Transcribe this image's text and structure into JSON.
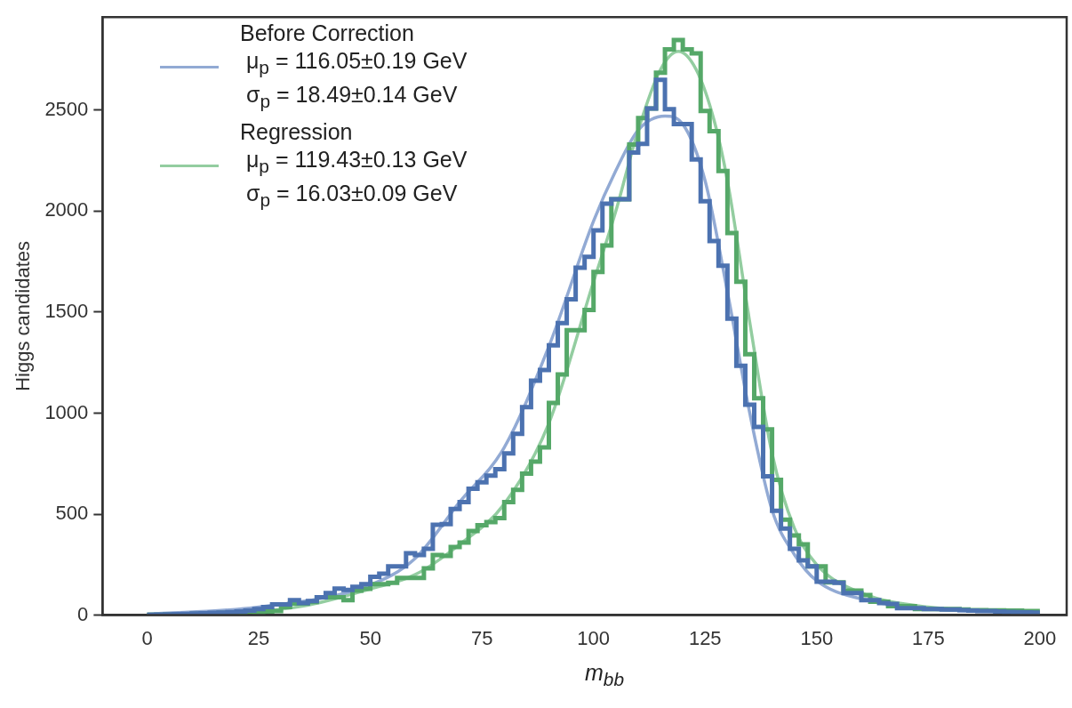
{
  "chart_data": {
    "type": "histogram",
    "xlabel": "m$_{bb}$",
    "ylabel": "Higgs candidates",
    "legend": "top left",
    "xlim": [
      -10,
      206
    ],
    "xticks": [
      0,
      25,
      50,
      75,
      100,
      125,
      150,
      175,
      200
    ],
    "ylim": [
      0,
      2960
    ],
    "yticks": [
      0,
      500,
      1000,
      1500,
      2000,
      2500
    ],
    "bins": [
      0,
      2,
      4,
      6,
      8,
      10,
      12,
      14,
      16,
      18,
      20,
      22,
      24,
      26,
      28,
      30,
      32,
      34,
      36,
      38,
      40,
      42,
      44,
      46,
      48,
      50,
      52,
      54,
      56,
      58,
      60,
      62,
      64,
      66,
      68,
      70,
      72,
      74,
      76,
      78,
      80,
      82,
      84,
      86,
      88,
      90,
      92,
      94,
      96,
      98,
      100,
      102,
      104,
      106,
      108,
      110,
      112,
      114,
      116,
      118,
      120,
      122,
      124,
      126,
      128,
      130,
      132,
      134,
      136,
      138,
      140,
      142,
      144,
      146,
      148,
      150,
      152,
      154,
      156,
      158,
      160,
      162,
      164,
      166,
      168,
      170,
      172,
      174,
      176,
      178,
      180,
      182,
      184,
      186,
      188,
      190,
      192,
      194,
      196,
      198,
      200
    ],
    "series": [
      {
        "color": "#4c72b0",
        "values": [
          2,
          3,
          4,
          5,
          6,
          8,
          9,
          11,
          13,
          15,
          18,
          22,
          30,
          40,
          53,
          53,
          74,
          60,
          70,
          88,
          109,
          131,
          125,
          140,
          153,
          190,
          205,
          241,
          241,
          306,
          298,
          328,
          447,
          451,
          525,
          560,
          626,
          657,
          690,
          722,
          800,
          897,
          1029,
          1160,
          1213,
          1335,
          1445,
          1563,
          1720,
          1773,
          1904,
          2036,
          2058,
          2058,
          2290,
          2333,
          2508,
          2649,
          2504,
          2430,
          2430,
          2255,
          2049,
          1852,
          1729,
          1467,
          1234,
          1042,
          932,
          687,
          517,
          429,
          328,
          271,
          241,
          166,
          166,
          160,
          109,
          109,
          74,
          74,
          60,
          55,
          35,
          35,
          35,
          30,
          30,
          28,
          28,
          25,
          22,
          20,
          20,
          18,
          16,
          15,
          14,
          12
        ]
      },
      {
        "color": "#55a868",
        "values": [
          2,
          2,
          3,
          4,
          5,
          6,
          7,
          9,
          10,
          12,
          14,
          16,
          15,
          18,
          20,
          40,
          58,
          58,
          65,
          88,
          88,
          88,
          74,
          122,
          130,
          153,
          153,
          160,
          184,
          184,
          184,
          232,
          298,
          293,
          337,
          359,
          416,
          445,
          460,
          480,
          560,
          620,
          700,
          760,
          830,
          1050,
          1191,
          1410,
          1410,
          1510,
          1699,
          1830,
          2058,
          2058,
          2329,
          2460,
          2508,
          2685,
          2800,
          2846,
          2800,
          2780,
          2495,
          2395,
          2198,
          1891,
          1650,
          1291,
          1073,
          919,
          670,
          473,
          394,
          350,
          241,
          241,
          162,
          162,
          122,
          122,
          100,
          66,
          66,
          44,
          44,
          44,
          30,
          30,
          30,
          30,
          30,
          28,
          25,
          25,
          24,
          24,
          22,
          22,
          20,
          20
        ]
      },
      {
        "type": "line",
        "name": "Before Correction\n μ$_{p}$ = 116.05±0.19 GeV\n σ$_{p}$ = 18.49±0.14 GeV",
        "color": "#92aad4",
        "x": [
          0,
          25,
          50,
          60,
          70,
          80,
          90,
          100,
          105,
          110,
          116,
          120,
          125,
          130,
          135,
          140,
          145,
          150,
          160,
          175,
          200
        ],
        "values": [
          5,
          40,
          150,
          280,
          560,
          830,
          1330,
          1950,
          2200,
          2400,
          2470,
          2430,
          2150,
          1600,
          1000,
          520,
          300,
          170,
          80,
          30,
          15
        ]
      },
      {
        "type": "line",
        "name": "Regression\n μ$_{p}$ = 119.43±0.13 GeV\n σ$_{p}$ = 16.03±0.09 GeV",
        "color": "#93cda0",
        "x": [
          0,
          20,
          35,
          50,
          60,
          70,
          80,
          90,
          100,
          105,
          110,
          115,
          119,
          123,
          127,
          130,
          135,
          140,
          145,
          150,
          160,
          175,
          200
        ],
        "values": [
          5,
          12,
          45,
          130,
          200,
          350,
          550,
          950,
          1650,
          2000,
          2400,
          2700,
          2790,
          2700,
          2450,
          2150,
          1450,
          800,
          430,
          250,
          110,
          40,
          15
        ]
      }
    ]
  }
}
